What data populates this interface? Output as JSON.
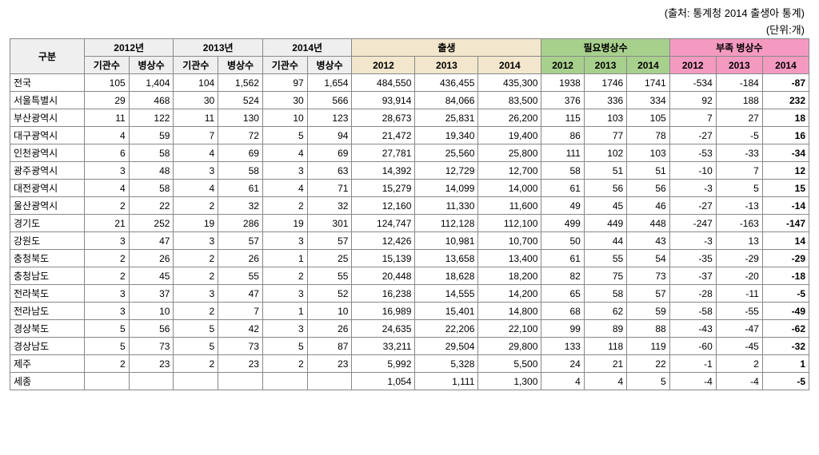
{
  "source_text": "(출처: 통계청 2014 출생아 통계)",
  "unit_text": "(단위:개)",
  "header": {
    "region": "구분",
    "y2012": "2012년",
    "y2013": "2013년",
    "y2014": "2014년",
    "births": "출생",
    "need": "필요병상수",
    "short": "부족 병상수",
    "inst": "기관수",
    "beds": "병상수",
    "y12": "2012",
    "y13": "2013",
    "y14": "2014"
  },
  "colors": {
    "gray": "#efefef",
    "beige": "#f2e6cc",
    "green": "#a8d08d",
    "pink": "#f49ac1"
  },
  "rows": [
    {
      "region": "전국",
      "i12": "105",
      "b12": "1,404",
      "i13": "104",
      "b13": "1,562",
      "i14": "97",
      "b14": "1,654",
      "br12": "484,550",
      "br13": "436,455",
      "br14": "435,300",
      "n12": "1938",
      "n13": "1746",
      "n14": "1741",
      "s12": "-534",
      "s13": "-184",
      "s14": "-87"
    },
    {
      "region": "서울특별시",
      "i12": "29",
      "b12": "468",
      "i13": "30",
      "b13": "524",
      "i14": "30",
      "b14": "566",
      "br12": "93,914",
      "br13": "84,066",
      "br14": "83,500",
      "n12": "376",
      "n13": "336",
      "n14": "334",
      "s12": "92",
      "s13": "188",
      "s14": "232"
    },
    {
      "region": "부산광역시",
      "i12": "11",
      "b12": "122",
      "i13": "11",
      "b13": "130",
      "i14": "10",
      "b14": "123",
      "br12": "28,673",
      "br13": "25,831",
      "br14": "26,200",
      "n12": "115",
      "n13": "103",
      "n14": "105",
      "s12": "7",
      "s13": "27",
      "s14": "18"
    },
    {
      "region": "대구광역시",
      "i12": "4",
      "b12": "59",
      "i13": "7",
      "b13": "72",
      "i14": "5",
      "b14": "94",
      "br12": "21,472",
      "br13": "19,340",
      "br14": "19,400",
      "n12": "86",
      "n13": "77",
      "n14": "78",
      "s12": "-27",
      "s13": "-5",
      "s14": "16"
    },
    {
      "region": "인천광역시",
      "i12": "6",
      "b12": "58",
      "i13": "4",
      "b13": "69",
      "i14": "4",
      "b14": "69",
      "br12": "27,781",
      "br13": "25,560",
      "br14": "25,800",
      "n12": "111",
      "n13": "102",
      "n14": "103",
      "s12": "-53",
      "s13": "-33",
      "s14": "-34"
    },
    {
      "region": "광주광역시",
      "i12": "3",
      "b12": "48",
      "i13": "3",
      "b13": "58",
      "i14": "3",
      "b14": "63",
      "br12": "14,392",
      "br13": "12,729",
      "br14": "12,700",
      "n12": "58",
      "n13": "51",
      "n14": "51",
      "s12": "-10",
      "s13": "7",
      "s14": "12"
    },
    {
      "region": "대전광역시",
      "i12": "4",
      "b12": "58",
      "i13": "4",
      "b13": "61",
      "i14": "4",
      "b14": "71",
      "br12": "15,279",
      "br13": "14,099",
      "br14": "14,000",
      "n12": "61",
      "n13": "56",
      "n14": "56",
      "s12": "-3",
      "s13": "5",
      "s14": "15"
    },
    {
      "region": "울산광역시",
      "i12": "2",
      "b12": "22",
      "i13": "2",
      "b13": "32",
      "i14": "2",
      "b14": "32",
      "br12": "12,160",
      "br13": "11,330",
      "br14": "11,600",
      "n12": "49",
      "n13": "45",
      "n14": "46",
      "s12": "-27",
      "s13": "-13",
      "s14": "-14"
    },
    {
      "region": "경기도",
      "i12": "21",
      "b12": "252",
      "i13": "19",
      "b13": "286",
      "i14": "19",
      "b14": "301",
      "br12": "124,747",
      "br13": "112,128",
      "br14": "112,100",
      "n12": "499",
      "n13": "449",
      "n14": "448",
      "s12": "-247",
      "s13": "-163",
      "s14": "-147"
    },
    {
      "region": "강원도",
      "i12": "3",
      "b12": "47",
      "i13": "3",
      "b13": "57",
      "i14": "3",
      "b14": "57",
      "br12": "12,426",
      "br13": "10,981",
      "br14": "10,700",
      "n12": "50",
      "n13": "44",
      "n14": "43",
      "s12": "-3",
      "s13": "13",
      "s14": "14"
    },
    {
      "region": "충청북도",
      "i12": "2",
      "b12": "26",
      "i13": "2",
      "b13": "26",
      "i14": "1",
      "b14": "25",
      "br12": "15,139",
      "br13": "13,658",
      "br14": "13,400",
      "n12": "61",
      "n13": "55",
      "n14": "54",
      "s12": "-35",
      "s13": "-29",
      "s14": "-29"
    },
    {
      "region": "충청남도",
      "i12": "2",
      "b12": "45",
      "i13": "2",
      "b13": "55",
      "i14": "2",
      "b14": "55",
      "br12": "20,448",
      "br13": "18,628",
      "br14": "18,200",
      "n12": "82",
      "n13": "75",
      "n14": "73",
      "s12": "-37",
      "s13": "-20",
      "s14": "-18"
    },
    {
      "region": "전라북도",
      "i12": "3",
      "b12": "37",
      "i13": "3",
      "b13": "47",
      "i14": "3",
      "b14": "52",
      "br12": "16,238",
      "br13": "14,555",
      "br14": "14,200",
      "n12": "65",
      "n13": "58",
      "n14": "57",
      "s12": "-28",
      "s13": "-11",
      "s14": "-5"
    },
    {
      "region": "전라남도",
      "i12": "3",
      "b12": "10",
      "i13": "2",
      "b13": "7",
      "i14": "1",
      "b14": "10",
      "br12": "16,989",
      "br13": "15,401",
      "br14": "14,800",
      "n12": "68",
      "n13": "62",
      "n14": "59",
      "s12": "-58",
      "s13": "-55",
      "s14": "-49"
    },
    {
      "region": "경상북도",
      "i12": "5",
      "b12": "56",
      "i13": "5",
      "b13": "42",
      "i14": "3",
      "b14": "26",
      "br12": "24,635",
      "br13": "22,206",
      "br14": "22,100",
      "n12": "99",
      "n13": "89",
      "n14": "88",
      "s12": "-43",
      "s13": "-47",
      "s14": "-62"
    },
    {
      "region": "경상남도",
      "i12": "5",
      "b12": "73",
      "i13": "5",
      "b13": "73",
      "i14": "5",
      "b14": "87",
      "br12": "33,211",
      "br13": "29,504",
      "br14": "29,800",
      "n12": "133",
      "n13": "118",
      "n14": "119",
      "s12": "-60",
      "s13": "-45",
      "s14": "-32"
    },
    {
      "region": "제주",
      "i12": "2",
      "b12": "23",
      "i13": "2",
      "b13": "23",
      "i14": "2",
      "b14": "23",
      "br12": "5,992",
      "br13": "5,328",
      "br14": "5,500",
      "n12": "24",
      "n13": "21",
      "n14": "22",
      "s12": "-1",
      "s13": "2",
      "s14": "1"
    },
    {
      "region": "세종",
      "i12": "",
      "b12": "",
      "i13": "",
      "b13": "",
      "i14": "",
      "b14": "",
      "br12": "1,054",
      "br13": "1,111",
      "br14": "1,300",
      "n12": "4",
      "n13": "4",
      "n14": "5",
      "s12": "-4",
      "s13": "-4",
      "s14": "-5"
    }
  ]
}
